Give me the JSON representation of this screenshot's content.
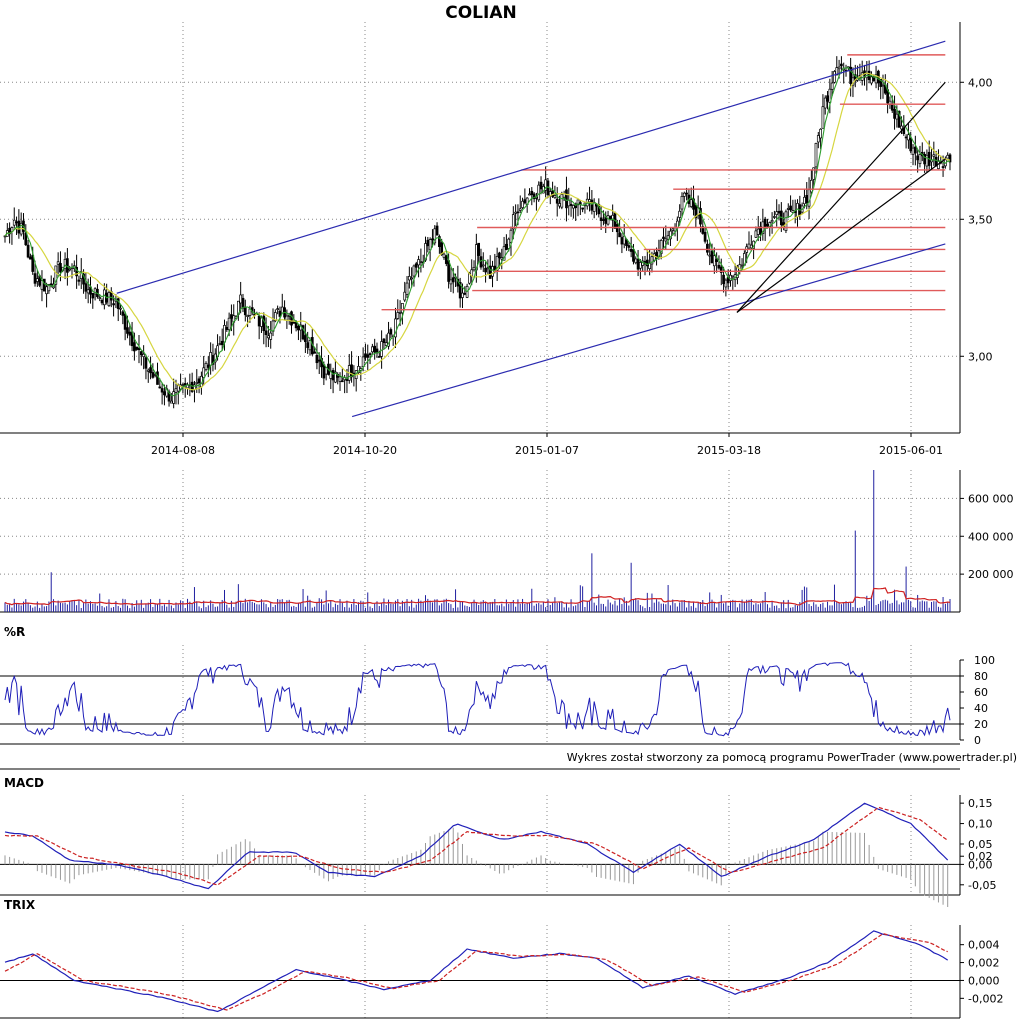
{
  "chart_data": {
    "type": "candlestick",
    "title": "COLIAN",
    "credit": "Wykres został stworzony za pomocą programu PowerTrader (www.powertrader.pl)",
    "x_dates": [
      "2014-08-08",
      "2014-10-20",
      "2015-01-07",
      "2015-03-18",
      "2015-06-01"
    ],
    "panels": [
      {
        "key": "price",
        "label": "",
        "ylim": [
          2.72,
          4.22
        ],
        "yticks": [
          {
            "v": 3.0,
            "t": "3,00"
          },
          {
            "v": 3.5,
            "t": "3,50"
          },
          {
            "v": 4.0,
            "t": "4,00"
          }
        ],
        "price_anchors": [
          [
            0,
            3.44
          ],
          [
            4,
            3.5
          ],
          [
            8,
            3.45
          ],
          [
            12,
            3.3
          ],
          [
            18,
            3.25
          ],
          [
            24,
            3.33
          ],
          [
            30,
            3.32
          ],
          [
            36,
            3.24
          ],
          [
            42,
            3.22
          ],
          [
            48,
            3.2
          ],
          [
            54,
            3.08
          ],
          [
            60,
            2.98
          ],
          [
            66,
            2.9
          ],
          [
            72,
            2.85
          ],
          [
            78,
            2.88
          ],
          [
            84,
            2.92
          ],
          [
            90,
            3.0
          ],
          [
            96,
            3.1
          ],
          [
            102,
            3.2
          ],
          [
            108,
            3.14
          ],
          [
            114,
            3.1
          ],
          [
            120,
            3.18
          ],
          [
            126,
            3.12
          ],
          [
            132,
            3.05
          ],
          [
            138,
            2.95
          ],
          [
            144,
            2.91
          ],
          [
            150,
            2.95
          ],
          [
            156,
            3.0
          ],
          [
            162,
            3.02
          ],
          [
            168,
            3.08
          ],
          [
            174,
            3.25
          ],
          [
            180,
            3.35
          ],
          [
            186,
            3.45
          ],
          [
            192,
            3.3
          ],
          [
            198,
            3.22
          ],
          [
            204,
            3.38
          ],
          [
            210,
            3.3
          ],
          [
            216,
            3.38
          ],
          [
            222,
            3.55
          ],
          [
            228,
            3.6
          ],
          [
            234,
            3.62
          ],
          [
            240,
            3.58
          ],
          [
            246,
            3.56
          ],
          [
            252,
            3.55
          ],
          [
            258,
            3.52
          ],
          [
            264,
            3.48
          ],
          [
            270,
            3.38
          ],
          [
            276,
            3.32
          ],
          [
            282,
            3.38
          ],
          [
            288,
            3.45
          ],
          [
            294,
            3.58
          ],
          [
            300,
            3.52
          ],
          [
            306,
            3.35
          ],
          [
            312,
            3.28
          ],
          [
            318,
            3.33
          ],
          [
            324,
            3.45
          ],
          [
            330,
            3.5
          ],
          [
            336,
            3.5
          ],
          [
            342,
            3.52
          ],
          [
            348,
            3.6
          ],
          [
            354,
            3.9
          ],
          [
            360,
            4.08
          ],
          [
            366,
            4.02
          ],
          [
            372,
            4.05
          ],
          [
            378,
            4.0
          ],
          [
            384,
            3.9
          ],
          [
            390,
            3.8
          ],
          [
            396,
            3.72
          ]
        ],
        "trend_lines": [
          {
            "color": "#2b2bb0",
            "from": [
              "2014-07-12",
              3.23
            ],
            "to": [
              "2015-06-15",
              4.15
            ]
          },
          {
            "color": "#2b2bb0",
            "from": [
              "2014-10-16",
              2.78
            ],
            "to": [
              "2015-06-15",
              3.41
            ]
          },
          {
            "color": "#000000",
            "from": [
              "2015-03-22",
              3.16
            ],
            "to": [
              "2015-06-15",
              4.0
            ]
          },
          {
            "color": "#000000",
            "from": [
              "2015-03-22",
              3.16
            ],
            "to": [
              "2015-06-15",
              3.72
            ]
          }
        ],
        "support_levels": [
          {
            "y": 4.1,
            "from": "2015-05-06",
            "to": "2015-06-15"
          },
          {
            "y": 3.92,
            "from": "2015-05-03",
            "to": "2015-06-15"
          },
          {
            "y": 3.68,
            "from": "2014-12-24",
            "to": "2015-06-15"
          },
          {
            "y": 3.61,
            "from": "2015-02-24",
            "to": "2015-06-15"
          },
          {
            "y": 3.47,
            "from": "2014-12-06",
            "to": "2015-06-15"
          },
          {
            "y": 3.39,
            "from": "2015-02-12",
            "to": "2015-06-15"
          },
          {
            "y": 3.31,
            "from": "2014-12-13",
            "to": "2015-06-15"
          },
          {
            "y": 3.24,
            "from": "2014-12-04",
            "to": "2015-06-15"
          },
          {
            "y": 3.17,
            "from": "2014-10-28",
            "to": "2015-06-15"
          }
        ]
      },
      {
        "key": "volume",
        "label": "",
        "ylim": [
          0,
          750000
        ],
        "yticks": [
          {
            "v": 200000,
            "t": "200 000"
          },
          {
            "v": 400000,
            "t": "400 000"
          },
          {
            "v": 600000,
            "t": "600 000"
          }
        ],
        "spikes": [
          [
            20,
            210000
          ],
          [
            254,
            310000
          ],
          [
            271,
            260000
          ],
          [
            368,
            430000
          ],
          [
            376,
            750000
          ],
          [
            390,
            240000
          ]
        ]
      },
      {
        "key": "williams_r",
        "label": "%R",
        "ylim": [
          0,
          100
        ],
        "yticks": [
          {
            "v": 0,
            "t": "0"
          },
          {
            "v": 20,
            "t": "20"
          },
          {
            "v": 40,
            "t": "40"
          },
          {
            "v": 60,
            "t": "60"
          },
          {
            "v": 80,
            "t": "80"
          },
          {
            "v": 100,
            "t": "100"
          }
        ],
        "levels": [
          20,
          80
        ]
      },
      {
        "key": "macd",
        "label": "MACD",
        "ylim": [
          -0.075,
          0.17
        ],
        "yticks": [
          {
            "v": -0.05,
            "t": "-0,05"
          },
          {
            "v": 0.0,
            "t": "0,00"
          },
          {
            "v": 0.02,
            "t": "0,02"
          },
          {
            "v": 0.05,
            "t": "0,05"
          },
          {
            "v": 0.1,
            "t": "0,10"
          },
          {
            "v": 0.15,
            "t": "0,15"
          }
        ],
        "series": [
          {
            "color": "#1f1fb8",
            "points": [
              [
                0,
                0.08
              ],
              [
                12,
                0.07
              ],
              [
                28,
                0.01
              ],
              [
                48,
                0.0
              ],
              [
                70,
                -0.03
              ],
              [
                88,
                -0.06
              ],
              [
                105,
                0.03
              ],
              [
                125,
                0.03
              ],
              [
                140,
                -0.02
              ],
              [
                160,
                -0.03
              ],
              [
                180,
                0.02
              ],
              [
                195,
                0.1
              ],
              [
                215,
                0.06
              ],
              [
                232,
                0.08
              ],
              [
                252,
                0.05
              ],
              [
                272,
                -0.02
              ],
              [
                292,
                0.05
              ],
              [
                310,
                -0.03
              ],
              [
                330,
                0.02
              ],
              [
                350,
                0.06
              ],
              [
                372,
                0.15
              ],
              [
                392,
                0.1
              ],
              [
                410,
                0.0
              ]
            ]
          },
          {
            "color": "#cc2222",
            "points": [
              [
                0,
                0.07
              ],
              [
                14,
                0.07
              ],
              [
                32,
                0.02
              ],
              [
                52,
                0.0
              ],
              [
                74,
                -0.02
              ],
              [
                92,
                -0.05
              ],
              [
                110,
                0.02
              ],
              [
                128,
                0.02
              ],
              [
                145,
                -0.01
              ],
              [
                165,
                -0.02
              ],
              [
                184,
                0.01
              ],
              [
                200,
                0.08
              ],
              [
                218,
                0.07
              ],
              [
                236,
                0.07
              ],
              [
                256,
                0.05
              ],
              [
                276,
                -0.01
              ],
              [
                296,
                0.04
              ],
              [
                314,
                -0.02
              ],
              [
                334,
                0.01
              ],
              [
                354,
                0.04
              ],
              [
                378,
                0.14
              ],
              [
                396,
                0.11
              ],
              [
                410,
                0.05
              ]
            ]
          }
        ]
      },
      {
        "key": "trix",
        "label": "TRIX",
        "ylim": [
          -0.0042,
          0.0062
        ],
        "yticks": [
          {
            "v": -0.002,
            "t": "-0,002"
          },
          {
            "v": 0.0,
            "t": "0,000"
          },
          {
            "v": 0.002,
            "t": "0,002"
          },
          {
            "v": 0.004,
            "t": "0,004"
          }
        ],
        "series": [
          {
            "color": "#1f1fb8",
            "points": [
              [
                0,
                0.002
              ],
              [
                12,
                0.003
              ],
              [
                30,
                0.0
              ],
              [
                50,
                -0.001
              ],
              [
                70,
                -0.002
              ],
              [
                92,
                -0.0035
              ],
              [
                110,
                -0.001
              ],
              [
                126,
                0.0012
              ],
              [
                144,
                0.0002
              ],
              [
                164,
                -0.001
              ],
              [
                184,
                0.0
              ],
              [
                200,
                0.0035
              ],
              [
                220,
                0.0025
              ],
              [
                240,
                0.003
              ],
              [
                256,
                0.0025
              ],
              [
                276,
                -0.0008
              ],
              [
                296,
                0.0005
              ],
              [
                316,
                -0.0015
              ],
              [
                336,
                0.0
              ],
              [
                356,
                0.002
              ],
              [
                376,
                0.0055
              ],
              [
                396,
                0.004
              ],
              [
                410,
                0.002
              ]
            ]
          },
          {
            "color": "#cc2222",
            "points": [
              [
                0,
                0.001
              ],
              [
                14,
                0.003
              ],
              [
                34,
                0.0
              ],
              [
                54,
                -0.0008
              ],
              [
                74,
                -0.0018
              ],
              [
                96,
                -0.0033
              ],
              [
                114,
                -0.0012
              ],
              [
                130,
                0.001
              ],
              [
                148,
                0.0003
              ],
              [
                168,
                -0.0009
              ],
              [
                188,
                0.0
              ],
              [
                204,
                0.0033
              ],
              [
                224,
                0.0027
              ],
              [
                244,
                0.0029
              ],
              [
                260,
                0.0024
              ],
              [
                280,
                -0.0006
              ],
              [
                300,
                0.0004
              ],
              [
                320,
                -0.0013
              ],
              [
                340,
                0.0
              ],
              [
                360,
                0.0018
              ],
              [
                380,
                0.0052
              ],
              [
                400,
                0.0042
              ],
              [
                410,
                0.003
              ]
            ]
          }
        ]
      }
    ]
  }
}
